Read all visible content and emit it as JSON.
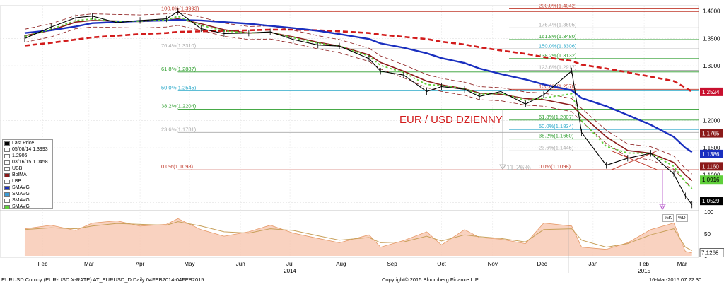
{
  "footer": {
    "ticker": "EURUSD Curncy (EUR-USD X-RATE) AT_EURUSD_D  Daily 04FEB2014-04FEB2015",
    "copyright": "Copyright© 2015 Bloomberg Finance L.P.",
    "timestamp": "16-Mar-2015 07:22:30"
  },
  "annotation": {
    "title": "EUR / USD DZIENNY",
    "drop_label": "11.26%"
  },
  "legend": {
    "items": [
      {
        "label": "Last Price",
        "color": "#000000",
        "icon": "candle-icon"
      },
      {
        "label": "05/08/14 1.3993",
        "color": "#ffffff",
        "icon": "none"
      },
      {
        "label": "1.2906",
        "color": "#ffffff",
        "icon": "none"
      },
      {
        "label": "03/16/15 1.0458",
        "color": "#ffffff",
        "icon": "none"
      },
      {
        "label": "UBB",
        "color": "#ffffff",
        "icon": "none"
      },
      {
        "label": "BolMA",
        "color": "#8b1a1a",
        "icon": "line-icon"
      },
      {
        "label": "LBB",
        "color": "#ffffff",
        "icon": "none"
      },
      {
        "label": "SMAVG",
        "color": "#1a2fbf",
        "icon": "line-icon"
      },
      {
        "label": "SMAVG",
        "color": "#3b9bd6",
        "icon": "line-icon"
      },
      {
        "label": "SMAVG",
        "color": "#ffffff",
        "icon": "none"
      },
      {
        "label": "SMAVG",
        "color": "#5fcf3a",
        "icon": "line-icon"
      }
    ]
  },
  "oscillator_legend": [
    "%K",
    "%D"
  ],
  "chart_data": {
    "type": "line",
    "title": "EUR / USD DZIENNY",
    "x_axis": {
      "months": [
        "Feb",
        "Mar",
        "Apr",
        "May",
        "Jun",
        "Jul",
        "Aug",
        "Sep",
        "Oct",
        "Nov",
        "Dec",
        "Jan",
        "Feb",
        "Mar"
      ],
      "years": [
        "2014",
        "2015"
      ]
    },
    "y_axis": {
      "ticks": [
        "1.4000",
        "1.3500",
        "1.3000",
        "1.2500",
        "1.2000",
        "1.1500",
        "1.1000",
        "1.0500"
      ],
      "ylim": [
        1.035,
        1.41
      ]
    },
    "osc_axis": {
      "ticks": [
        "100",
        "50",
        "0"
      ],
      "current": "7.1268"
    },
    "last_price": {
      "x": [
        "2014-02-04",
        "2014-02-20",
        "2014-03-07",
        "2014-03-17",
        "2014-04-01",
        "2014-04-15",
        "2014-05-01",
        "2014-05-08",
        "2014-05-22",
        "2014-06-05",
        "2014-06-20",
        "2014-07-03",
        "2014-07-17",
        "2014-08-01",
        "2014-08-14",
        "2014-09-01",
        "2014-09-08",
        "2014-09-22",
        "2014-10-06",
        "2014-10-15",
        "2014-10-29",
        "2014-11-07",
        "2014-11-20",
        "2014-12-05",
        "2014-12-16",
        "2015-01-02",
        "2015-01-08",
        "2015-01-23",
        "2015-02-05",
        "2015-02-19",
        "2015-03-05",
        "2015-03-12",
        "2015-03-16"
      ],
      "y": [
        1.35,
        1.371,
        1.388,
        1.391,
        1.379,
        1.383,
        1.386,
        1.3993,
        1.368,
        1.359,
        1.36,
        1.362,
        1.348,
        1.338,
        1.336,
        1.313,
        1.29,
        1.283,
        1.253,
        1.262,
        1.257,
        1.244,
        1.253,
        1.23,
        1.247,
        1.2906,
        1.178,
        1.118,
        1.131,
        1.14,
        1.102,
        1.062,
        1.0458
      ]
    },
    "bollinger_ma": {
      "y": [
        1.355,
        1.365,
        1.38,
        1.383,
        1.382,
        1.381,
        1.383,
        1.386,
        1.377,
        1.366,
        1.36,
        1.361,
        1.353,
        1.343,
        1.336,
        1.32,
        1.306,
        1.29,
        1.272,
        1.265,
        1.258,
        1.25,
        1.248,
        1.24,
        1.238,
        1.228,
        1.21,
        1.17,
        1.145,
        1.14,
        1.123,
        1.1,
        1.09
      ]
    },
    "smavg_blue": {
      "y": [
        1.36,
        1.365,
        1.372,
        1.378,
        1.38,
        1.382,
        1.383,
        1.384,
        1.383,
        1.38,
        1.377,
        1.373,
        1.369,
        1.364,
        1.358,
        1.349,
        1.341,
        1.333,
        1.323,
        1.314,
        1.305,
        1.295,
        1.285,
        1.275,
        1.266,
        1.255,
        1.241,
        1.226,
        1.21,
        1.192,
        1.17,
        1.15,
        1.142
      ]
    },
    "smavg_red": {
      "y": [
        1.337,
        1.342,
        1.348,
        1.352,
        1.355,
        1.358,
        1.36,
        1.362,
        1.363,
        1.364,
        1.365,
        1.366,
        1.366,
        1.365,
        1.363,
        1.36,
        1.357,
        1.353,
        1.349,
        1.344,
        1.339,
        1.334,
        1.328,
        1.322,
        1.316,
        1.309,
        1.302,
        1.295,
        1.288,
        1.28,
        1.272,
        1.26,
        1.2524
      ]
    },
    "price_tags": [
      {
        "value": "1.4000",
        "kind": "tick"
      },
      {
        "value": "1.2524",
        "color": "#c8102e"
      },
      {
        "value": "1.1765",
        "color": "#8b1a1a"
      },
      {
        "value": "1.1386",
        "color": "#1a2fbf"
      },
      {
        "value": "1.1160",
        "color": "#8b1a1a"
      },
      {
        "value": "1.0916",
        "color": "#5fcf3a"
      },
      {
        "value": "1.0529",
        "color": "#000000"
      }
    ],
    "fib_left": {
      "levels": [
        {
          "label": "100.0%(1.3993)",
          "value": 1.3993,
          "color": "#c0392b"
        },
        {
          "label": "76.4%(1.3310)",
          "value": 1.331,
          "color": "#aaaaaa"
        },
        {
          "label": "61.8%(1.2887)",
          "value": 1.2887,
          "color": "#2e9e2e"
        },
        {
          "label": "50.0%(1.2545)",
          "value": 1.2545,
          "color": "#2aa8c9"
        },
        {
          "label": "38.2%(1.2204)",
          "value": 1.2204,
          "color": "#2e9e2e"
        },
        {
          "label": "23.6%(1.1781)",
          "value": 1.1781,
          "color": "#aaaaaa"
        },
        {
          "label": "0.0%(1.1098)",
          "value": 1.1098,
          "color": "#c0392b"
        }
      ]
    },
    "fib_right": {
      "levels": [
        {
          "label": "200.0%(1.4042)",
          "value": 1.4042,
          "color": "#c0392b"
        },
        {
          "label": "176.4%(1.3695)",
          "value": 1.3695,
          "color": "#aaaaaa"
        },
        {
          "label": "161.8%(1.3480)",
          "value": 1.348,
          "color": "#2e9e2e"
        },
        {
          "label": "150.0%(1.3306)",
          "value": 1.3306,
          "color": "#2aa8c9"
        },
        {
          "label": "138.2%(1.3132)",
          "value": 1.3132,
          "color": "#2e9e2e"
        },
        {
          "label": "123.6%(1.2917)",
          "value": 1.2917,
          "color": "#aaaaaa"
        },
        {
          "label": "100.0%(1.2570)",
          "value": 1.257,
          "color": "#c0392b"
        },
        {
          "label": "61.8%(1.2007)",
          "value": 1.2007,
          "color": "#2e9e2e"
        },
        {
          "label": "50.0%(1.1834)",
          "value": 1.1834,
          "color": "#2aa8c9"
        },
        {
          "label": "38.2%(1.1660)",
          "value": 1.166,
          "color": "#2e9e2e"
        },
        {
          "label": "23.6%(1.1445)",
          "value": 1.1445,
          "color": "#aaaaaa"
        },
        {
          "label": "0.0%(1.1098)",
          "value": 1.1098,
          "color": "#c0392b"
        }
      ]
    },
    "stochastic": {
      "k": [
        62,
        70,
        58,
        75,
        80,
        68,
        72,
        85,
        60,
        45,
        55,
        70,
        52,
        40,
        30,
        48,
        20,
        35,
        55,
        25,
        60,
        42,
        38,
        28,
        75,
        68,
        20,
        15,
        30,
        60,
        75,
        10,
        7
      ],
      "d": [
        60,
        64,
        62,
        68,
        74,
        72,
        70,
        78,
        68,
        55,
        52,
        62,
        58,
        46,
        36,
        42,
        30,
        32,
        45,
        34,
        48,
        44,
        40,
        32,
        60,
        62,
        36,
        20,
        28,
        48,
        62,
        20,
        12
      ]
    },
    "grid": true
  }
}
